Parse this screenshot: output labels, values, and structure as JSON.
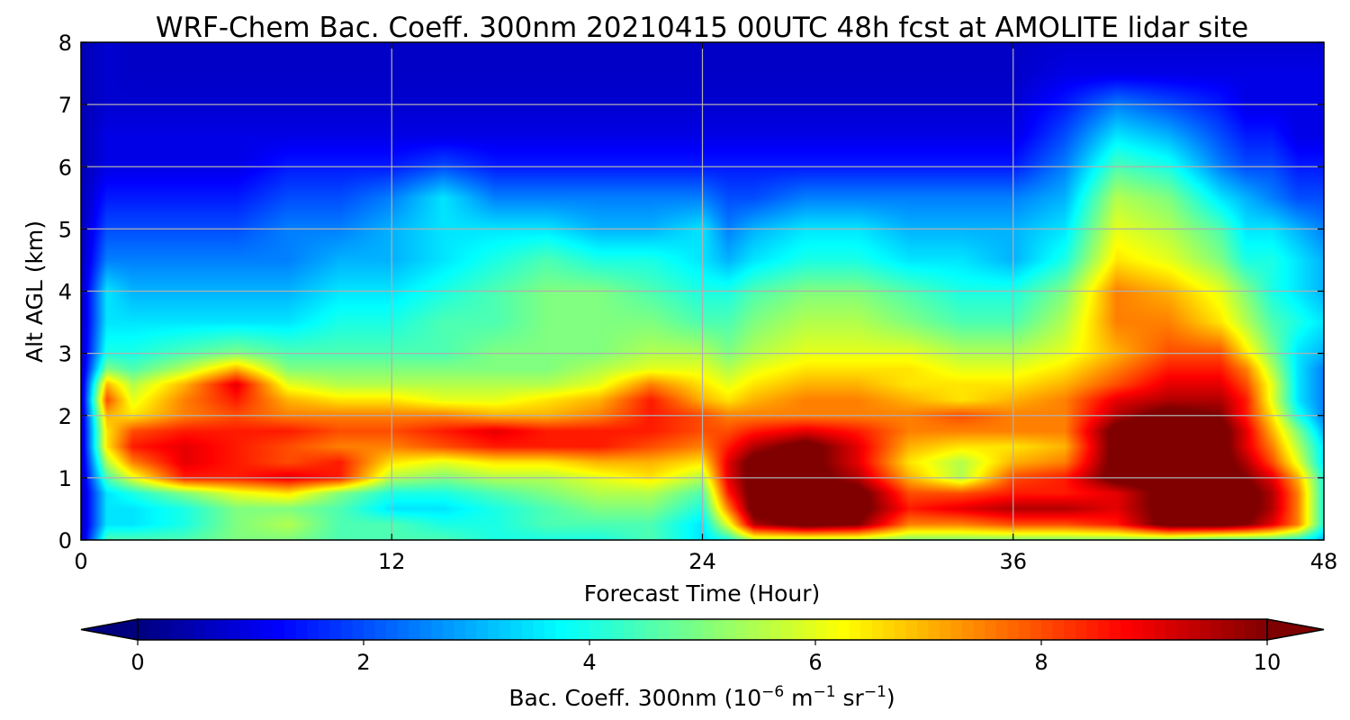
{
  "chart_data": {
    "type": "heatmap",
    "title": "WRF-Chem Bac. Coeff. 300nm  20210415 00UTC 48h fcst at AMOLITE lidar site",
    "xlabel": "Forecast Time (Hour)",
    "ylabel": "Alt AGL (km)",
    "xlim": [
      0,
      48
    ],
    "ylim": [
      0,
      8
    ],
    "x_ticks": [
      "0",
      "12",
      "24",
      "36",
      "48"
    ],
    "y_ticks": [
      "0",
      "1",
      "2",
      "3",
      "4",
      "5",
      "6",
      "7",
      "8"
    ],
    "grid": true,
    "colormap": "jet",
    "colorbar": {
      "label_prefix": "Bac. Coeff. 300nm  (10",
      "label_exp1": "−6",
      "label_mid": " m",
      "label_exp2": "−1",
      "label_mid2": " sr",
      "label_exp3": "−1",
      "label_suffix": ")",
      "range": [
        0,
        10
      ],
      "ticks": [
        "0",
        "2",
        "4",
        "6",
        "8",
        "10"
      ],
      "extend": "both"
    },
    "x": [
      0,
      1,
      2,
      4,
      6,
      8,
      10,
      12,
      14,
      16,
      18,
      20,
      22,
      24,
      25,
      26,
      28,
      30,
      32,
      34,
      36,
      38,
      40,
      42,
      44,
      45,
      46,
      47,
      48
    ],
    "y": [
      0,
      0.25,
      0.5,
      0.75,
      1,
      1.25,
      1.5,
      1.75,
      2,
      2.25,
      2.5,
      2.75,
      3,
      3.5,
      4,
      4.5,
      5,
      5.5,
      6,
      6.5,
      7,
      7.5,
      8
    ],
    "z": [
      [
        0.5,
        4.5,
        4.5,
        4.5,
        5.0,
        5.0,
        4.5,
        4.5,
        4.5,
        4.0,
        4.0,
        4.0,
        4.5,
        3.5,
        4.0,
        5.5,
        5.5,
        5.5,
        5.0,
        5.0,
        5.0,
        5.0,
        5.0,
        5.0,
        4.5,
        4.5,
        4.5,
        4.0,
        3.0
      ],
      [
        0.5,
        3.5,
        3.5,
        4.0,
        5.0,
        5.5,
        4.5,
        4.5,
        4.0,
        4.0,
        4.5,
        4.5,
        4.5,
        3.5,
        6.0,
        9.5,
        10.5,
        10.0,
        7.5,
        7.5,
        8.0,
        8.0,
        8.5,
        10.5,
        10.5,
        10.0,
        9.0,
        7.5,
        4.0
      ],
      [
        0.5,
        3.5,
        3.5,
        4.0,
        5.0,
        5.0,
        4.5,
        3.5,
        3.5,
        4.0,
        4.5,
        5.0,
        5.0,
        4.0,
        7.5,
        10.5,
        10.5,
        10.5,
        8.5,
        9.0,
        9.5,
        9.5,
        9.0,
        10.5,
        10.5,
        10.5,
        9.5,
        7.5,
        4.0
      ],
      [
        0.5,
        3.5,
        4.0,
        5.0,
        6.0,
        6.5,
        5.0,
        4.0,
        4.0,
        4.5,
        5.0,
        5.5,
        5.5,
        4.5,
        8.5,
        10.5,
        10.5,
        10.5,
        8.0,
        8.0,
        8.5,
        8.5,
        9.0,
        10.5,
        10.5,
        10.5,
        9.5,
        7.5,
        4.0
      ],
      [
        0.5,
        4.5,
        6.0,
        8.5,
        8.5,
        9.0,
        8.5,
        5.5,
        5.0,
        5.5,
        5.5,
        6.0,
        6.5,
        5.5,
        9.0,
        10.5,
        10.5,
        9.5,
        7.0,
        5.5,
        8.0,
        8.5,
        10.5,
        10.5,
        10.5,
        10.0,
        9.0,
        7.0,
        4.0
      ],
      [
        0.5,
        5.5,
        7.5,
        9.0,
        8.5,
        8.0,
        8.5,
        6.5,
        6.0,
        6.5,
        6.5,
        7.0,
        7.0,
        6.5,
        9.0,
        10.5,
        10.5,
        9.0,
        6.5,
        5.5,
        7.0,
        7.5,
        10.5,
        10.5,
        10.5,
        9.5,
        8.0,
        6.0,
        3.5
      ],
      [
        0.5,
        6.5,
        8.5,
        9.0,
        8.5,
        8.0,
        7.5,
        7.5,
        8.0,
        8.5,
        8.5,
        8.5,
        8.0,
        7.5,
        8.5,
        9.5,
        10.5,
        9.0,
        7.0,
        6.5,
        6.5,
        7.0,
        10.5,
        10.5,
        10.5,
        9.0,
        7.5,
        5.5,
        3.5
      ],
      [
        0.5,
        6.5,
        8.0,
        8.5,
        8.5,
        8.5,
        8.0,
        8.0,
        8.5,
        9.0,
        8.5,
        8.5,
        8.5,
        8.0,
        8.0,
        8.5,
        9.0,
        8.5,
        7.5,
        7.5,
        7.5,
        7.5,
        10.5,
        10.5,
        10.5,
        9.0,
        7.0,
        5.0,
        3.0
      ],
      [
        0.5,
        7.0,
        6.5,
        7.5,
        8.0,
        7.5,
        7.5,
        7.5,
        7.5,
        7.0,
        7.0,
        7.5,
        8.5,
        8.0,
        7.5,
        7.5,
        7.5,
        7.5,
        7.5,
        8.0,
        7.5,
        7.5,
        9.5,
        10.5,
        10.0,
        8.5,
        6.5,
        4.0,
        2.5
      ],
      [
        0.5,
        8.0,
        6.0,
        7.5,
        8.5,
        7.0,
        6.5,
        6.5,
        6.0,
        6.0,
        6.5,
        7.0,
        8.5,
        7.0,
        6.5,
        7.0,
        7.5,
        7.5,
        7.0,
        6.5,
        7.0,
        7.5,
        9.0,
        9.5,
        9.5,
        8.5,
        6.0,
        3.5,
        2.5
      ],
      [
        0.5,
        7.0,
        5.5,
        7.0,
        9.0,
        6.0,
        5.5,
        5.5,
        5.5,
        5.5,
        5.5,
        6.0,
        7.5,
        6.5,
        6.0,
        6.5,
        7.0,
        7.0,
        6.5,
        6.5,
        6.5,
        7.0,
        8.0,
        9.0,
        9.0,
        8.0,
        6.0,
        3.5,
        2.5
      ],
      [
        0.5,
        5.0,
        4.5,
        5.5,
        7.0,
        5.0,
        5.0,
        5.0,
        5.0,
        5.0,
        5.0,
        5.5,
        6.0,
        6.0,
        5.5,
        6.0,
        6.5,
        6.5,
        6.5,
        6.0,
        6.0,
        6.5,
        7.5,
        8.5,
        8.5,
        7.5,
        5.5,
        3.5,
        2.5
      ],
      [
        0.5,
        4.0,
        4.0,
        4.5,
        5.0,
        4.5,
        4.5,
        4.5,
        4.5,
        5.0,
        5.0,
        5.0,
        5.5,
        5.5,
        5.0,
        5.5,
        6.0,
        6.0,
        6.0,
        5.5,
        5.5,
        6.0,
        7.0,
        8.0,
        8.0,
        6.5,
        5.0,
        3.5,
        3.0
      ],
      [
        0.5,
        3.5,
        3.5,
        3.5,
        3.5,
        3.5,
        4.0,
        4.0,
        4.5,
        4.5,
        5.0,
        5.0,
        5.0,
        4.5,
        4.5,
        5.0,
        5.5,
        5.5,
        5.0,
        4.5,
        4.5,
        5.5,
        7.5,
        7.5,
        6.5,
        5.5,
        4.5,
        4.0,
        3.5
      ],
      [
        0.5,
        3.5,
        3.0,
        3.0,
        3.0,
        3.0,
        3.5,
        3.5,
        4.0,
        4.5,
        5.0,
        5.0,
        4.5,
        4.0,
        4.0,
        4.5,
        5.0,
        5.0,
        4.5,
        4.0,
        4.0,
        5.0,
        7.5,
        7.0,
        6.0,
        5.0,
        4.0,
        3.5,
        3.0
      ],
      [
        0.5,
        2.5,
        2.5,
        2.5,
        2.5,
        2.5,
        3.0,
        3.0,
        3.5,
        4.0,
        4.5,
        4.0,
        4.0,
        3.5,
        3.0,
        3.5,
        4.0,
        4.0,
        3.5,
        3.5,
        3.0,
        4.0,
        6.5,
        6.0,
        5.0,
        4.0,
        4.0,
        3.5,
        3.0
      ],
      [
        0.5,
        2.0,
        2.0,
        2.0,
        2.0,
        2.5,
        2.5,
        3.0,
        3.5,
        3.5,
        3.5,
        3.0,
        3.0,
        3.5,
        2.5,
        3.0,
        3.5,
        3.5,
        3.0,
        3.0,
        3.0,
        3.5,
        6.0,
        5.5,
        4.5,
        3.5,
        3.5,
        3.0,
        2.5
      ],
      [
        0.5,
        1.5,
        1.5,
        1.5,
        1.5,
        2.0,
        2.0,
        2.5,
        3.5,
        2.5,
        2.5,
        2.5,
        2.5,
        2.5,
        2.0,
        2.0,
        2.5,
        2.5,
        2.5,
        2.5,
        2.5,
        3.0,
        5.5,
        5.0,
        3.5,
        3.0,
        2.5,
        2.0,
        2.0
      ],
      [
        0.5,
        1.0,
        1.0,
        1.0,
        1.0,
        1.5,
        1.5,
        1.5,
        2.0,
        1.5,
        1.5,
        1.5,
        1.5,
        1.5,
        1.5,
        1.5,
        1.5,
        1.5,
        1.5,
        1.5,
        1.5,
        2.5,
        4.5,
        4.0,
        2.5,
        2.0,
        2.0,
        1.5,
        1.5
      ],
      [
        0.5,
        1.0,
        1.0,
        1.0,
        1.0,
        1.0,
        1.0,
        1.0,
        1.0,
        1.0,
        1.0,
        1.0,
        1.0,
        1.0,
        1.0,
        1.0,
        1.0,
        1.0,
        1.0,
        1.0,
        1.0,
        2.0,
        3.5,
        3.0,
        2.0,
        1.5,
        1.5,
        1.0,
        1.0
      ],
      [
        0.5,
        0.8,
        0.8,
        0.8,
        0.8,
        0.8,
        0.8,
        0.8,
        0.8,
        0.8,
        0.8,
        0.8,
        0.8,
        0.8,
        0.8,
        0.8,
        0.8,
        0.8,
        0.8,
        0.8,
        0.8,
        1.5,
        2.5,
        2.0,
        1.5,
        1.0,
        1.0,
        1.0,
        1.0
      ],
      [
        0.5,
        0.8,
        0.7,
        0.7,
        0.7,
        0.7,
        0.7,
        0.7,
        0.7,
        0.7,
        0.7,
        0.7,
        0.7,
        0.7,
        0.7,
        0.7,
        0.7,
        0.7,
        0.7,
        0.7,
        0.7,
        1.0,
        1.0,
        1.0,
        1.0,
        1.0,
        1.0,
        1.0,
        1.0
      ],
      [
        0.5,
        0.8,
        0.7,
        0.7,
        0.7,
        0.7,
        0.7,
        0.7,
        0.7,
        0.7,
        0.7,
        0.7,
        0.7,
        0.7,
        0.7,
        0.7,
        0.7,
        0.7,
        0.7,
        0.7,
        0.7,
        0.8,
        0.8,
        0.8,
        0.8,
        0.8,
        0.8,
        0.8,
        0.8
      ]
    ]
  }
}
